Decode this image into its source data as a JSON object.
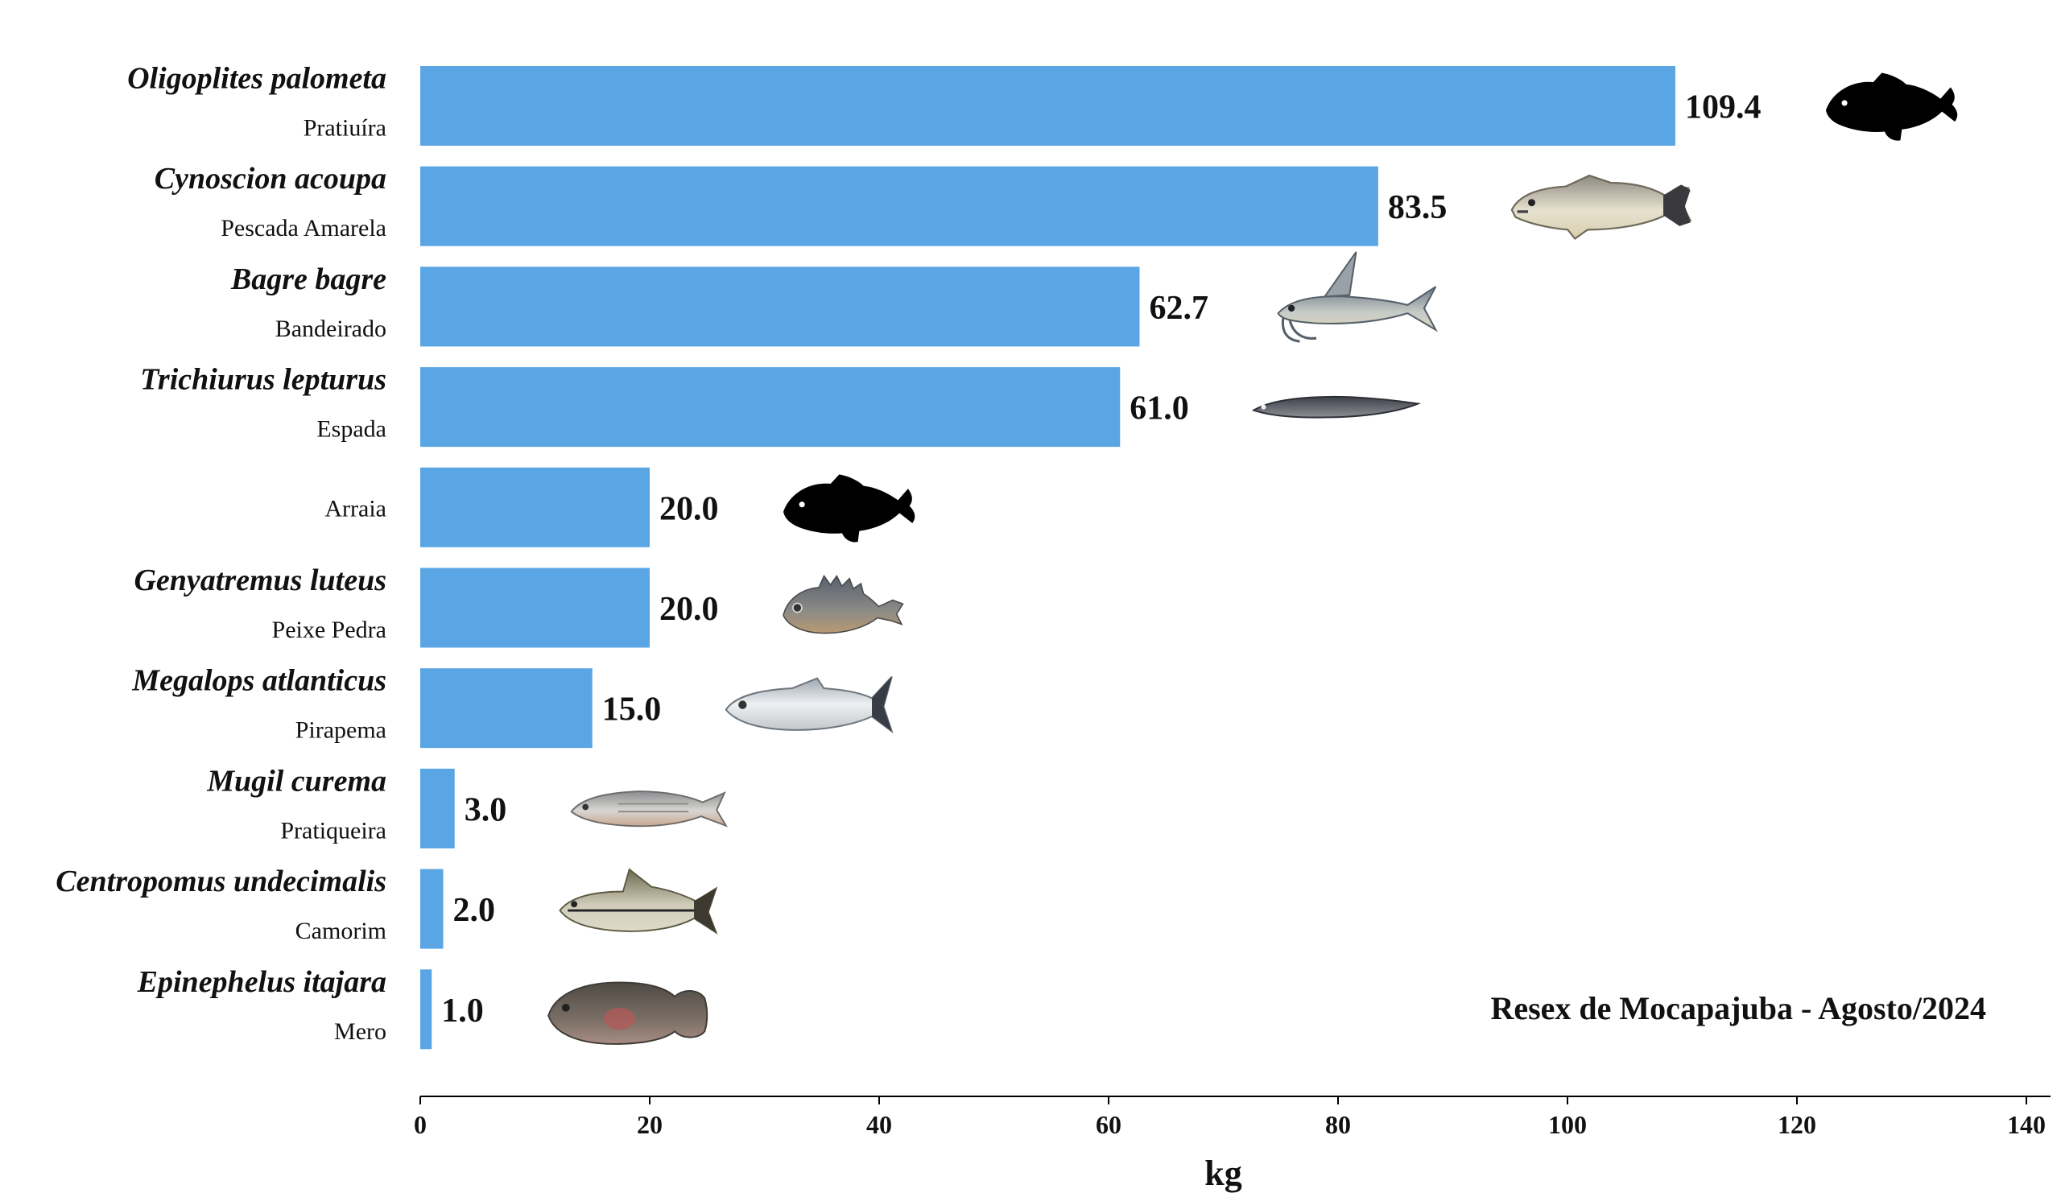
{
  "chart_data": {
    "type": "bar",
    "orientation": "horizontal",
    "categories": [
      {
        "scientific": "Oligoplites palometa",
        "common": "Pratiuíra",
        "icon": "fish-silhouette-icon"
      },
      {
        "scientific": "Cynoscion acoupa",
        "common": "Pescada Amarela",
        "icon": "weakfish-icon"
      },
      {
        "scientific": "Bagre bagre",
        "common": "Bandeirado",
        "icon": "catfish-icon"
      },
      {
        "scientific": "Trichiurus lepturus",
        "common": "Espada",
        "icon": "cutlassfish-icon"
      },
      {
        "scientific": "",
        "common": "Arraia",
        "icon": "fish-silhouette-icon"
      },
      {
        "scientific": "Genyatremus luteus",
        "common": "Peixe Pedra",
        "icon": "grunt-fish-icon"
      },
      {
        "scientific": "Megalops atlanticus",
        "common": "Pirapema",
        "icon": "tarpon-icon"
      },
      {
        "scientific": "Mugil curema",
        "common": "Pratiqueira",
        "icon": "mullet-icon"
      },
      {
        "scientific": "Centropomus undecimalis",
        "common": "Camorim",
        "icon": "snook-icon"
      },
      {
        "scientific": "Epinephelus itajara",
        "common": "Mero",
        "icon": "grouper-icon"
      }
    ],
    "values": [
      109.4,
      83.5,
      62.7,
      61.0,
      20.0,
      20.0,
      15.0,
      3.0,
      2.0,
      1.0
    ],
    "value_labels": [
      "109.4",
      "83.5",
      "62.7",
      "61.0",
      "20.0",
      "20.0",
      "15.0",
      "3.0",
      "2.0",
      "1.0"
    ],
    "xlabel": "kg",
    "xlim": [
      0,
      140
    ],
    "xticks": [
      0,
      20,
      40,
      60,
      80,
      100,
      120,
      140
    ],
    "annotation": "Resex de Mocapajuba - Agosto/2024",
    "grid": false,
    "colors": {
      "bar": "#5aa5e4",
      "text": "#111111",
      "axis": "#000000"
    }
  }
}
